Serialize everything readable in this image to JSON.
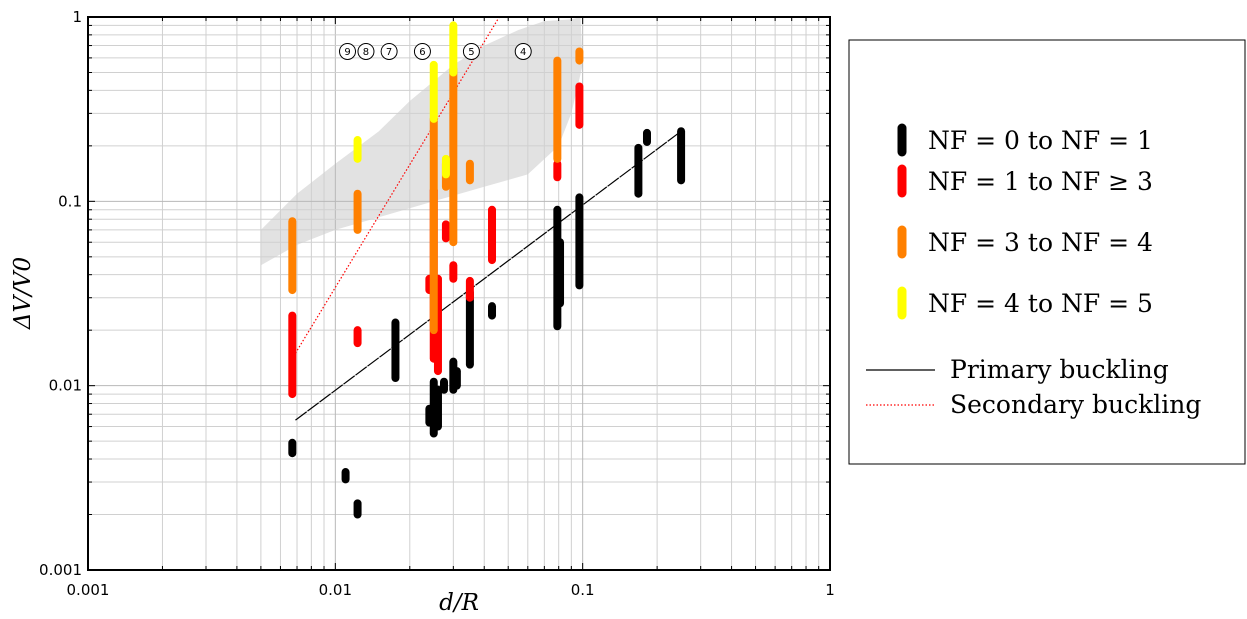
{
  "chart_data": {
    "type": "scatter",
    "xlabel": "d/R",
    "ylabel": "ΔV/V0",
    "xscale": "log",
    "yscale": "log",
    "xlim": [
      0.001,
      1
    ],
    "ylim": [
      0.001,
      1
    ],
    "grid": true,
    "legend_position": "right",
    "x_ticks": [
      {
        "value": 0.001,
        "label": "0.001"
      },
      {
        "value": 0.01,
        "label": "0.01"
      },
      {
        "value": 0.1,
        "label": "0.1"
      },
      {
        "value": 1,
        "label": "1"
      }
    ],
    "y_ticks": [
      {
        "value": 0.001,
        "label": "0.001"
      },
      {
        "value": 0.01,
        "label": "0.01"
      },
      {
        "value": 0.1,
        "label": "0.1"
      },
      {
        "value": 1,
        "label": "1"
      }
    ],
    "series": [
      {
        "name": "N_F = 0 to N_F = 1",
        "legend_label": "NF = 0 to NF = 1",
        "color": "#000000",
        "segments": [
          {
            "x": 0.0067,
            "y_min": 0.0043,
            "y_max": 0.0049
          },
          {
            "x": 0.011,
            "y_min": 0.0031,
            "y_max": 0.0034
          },
          {
            "x": 0.0123,
            "y_min": 0.002,
            "y_max": 0.0023
          },
          {
            "x": 0.0175,
            "y_min": 0.011,
            "y_max": 0.022
          },
          {
            "x": 0.024,
            "y_min": 0.0063,
            "y_max": 0.0075
          },
          {
            "x": 0.025,
            "y_min": 0.0055,
            "y_max": 0.0105
          },
          {
            "x": 0.026,
            "y_min": 0.006,
            "y_max": 0.0095
          },
          {
            "x": 0.0275,
            "y_min": 0.0095,
            "y_max": 0.0105
          },
          {
            "x": 0.03,
            "y_min": 0.0095,
            "y_max": 0.0135
          },
          {
            "x": 0.031,
            "y_min": 0.01,
            "y_max": 0.012
          },
          {
            "x": 0.035,
            "y_min": 0.013,
            "y_max": 0.032
          },
          {
            "x": 0.043,
            "y_min": 0.024,
            "y_max": 0.027
          },
          {
            "x": 0.079,
            "y_min": 0.021,
            "y_max": 0.09
          },
          {
            "x": 0.081,
            "y_min": 0.028,
            "y_max": 0.06
          },
          {
            "x": 0.097,
            "y_min": 0.035,
            "y_max": 0.105
          },
          {
            "x": 0.168,
            "y_min": 0.11,
            "y_max": 0.195
          },
          {
            "x": 0.182,
            "y_min": 0.21,
            "y_max": 0.235
          },
          {
            "x": 0.25,
            "y_min": 0.13,
            "y_max": 0.24
          }
        ]
      },
      {
        "name": "N_F = 1 to N_F ≥ 3",
        "legend_label": "NF = 1 to NF ≥ 3",
        "color": "#ff0000",
        "segments": [
          {
            "x": 0.0067,
            "y_min": 0.009,
            "y_max": 0.024
          },
          {
            "x": 0.0123,
            "y_min": 0.017,
            "y_max": 0.02
          },
          {
            "x": 0.024,
            "y_min": 0.033,
            "y_max": 0.038
          },
          {
            "x": 0.025,
            "y_min": 0.014,
            "y_max": 0.115
          },
          {
            "x": 0.026,
            "y_min": 0.012,
            "y_max": 0.038
          },
          {
            "x": 0.028,
            "y_min": 0.063,
            "y_max": 0.075
          },
          {
            "x": 0.03,
            "y_min": 0.038,
            "y_max": 0.045
          },
          {
            "x": 0.035,
            "y_min": 0.03,
            "y_max": 0.037
          },
          {
            "x": 0.043,
            "y_min": 0.048,
            "y_max": 0.09
          },
          {
            "x": 0.079,
            "y_min": 0.135,
            "y_max": 0.16
          },
          {
            "x": 0.097,
            "y_min": 0.26,
            "y_max": 0.42
          }
        ]
      },
      {
        "name": "N_F = 3 to N_F = 4",
        "legend_label": "NF = 3 to NF = 4",
        "color": "#ff8000",
        "segments": [
          {
            "x": 0.0067,
            "y_min": 0.033,
            "y_max": 0.078
          },
          {
            "x": 0.0123,
            "y_min": 0.07,
            "y_max": 0.11
          },
          {
            "x": 0.025,
            "y_min": 0.02,
            "y_max": 0.28
          },
          {
            "x": 0.028,
            "y_min": 0.12,
            "y_max": 0.16
          },
          {
            "x": 0.03,
            "y_min": 0.06,
            "y_max": 0.52
          },
          {
            "x": 0.035,
            "y_min": 0.13,
            "y_max": 0.16
          },
          {
            "x": 0.079,
            "y_min": 0.17,
            "y_max": 0.58
          },
          {
            "x": 0.097,
            "y_min": 0.58,
            "y_max": 0.65
          }
        ]
      },
      {
        "name": "N_F = 4 to N_F = 5",
        "legend_label": "NF = 4 to NF = 5",
        "color": "#ffff00",
        "segments": [
          {
            "x": 0.0123,
            "y_min": 0.17,
            "y_max": 0.215
          },
          {
            "x": 0.025,
            "y_min": 0.28,
            "y_max": 0.55
          },
          {
            "x": 0.028,
            "y_min": 0.14,
            "y_max": 0.17
          },
          {
            "x": 0.03,
            "y_min": 0.5,
            "y_max": 0.9
          }
        ]
      }
    ],
    "lines": [
      {
        "name": "Primary buckling",
        "color": "#000000",
        "style": "solid",
        "points": [
          {
            "x": 0.0069,
            "y": 0.0065
          },
          {
            "x": 0.25,
            "y": 0.24
          }
        ]
      },
      {
        "name": "Secondary buckling",
        "color": "#ff0000",
        "style": "dotted",
        "points": [
          {
            "x": 0.0069,
            "y": 0.015
          },
          {
            "x": 0.046,
            "y": 1.0
          }
        ]
      }
    ],
    "band": {
      "color": "#e2e2e2",
      "polygon": [
        {
          "x": 0.005,
          "y": 0.07
        },
        {
          "x": 0.007,
          "y": 0.11
        },
        {
          "x": 0.01,
          "y": 0.16
        },
        {
          "x": 0.015,
          "y": 0.24
        },
        {
          "x": 0.02,
          "y": 0.35
        },
        {
          "x": 0.03,
          "y": 0.55
        },
        {
          "x": 0.04,
          "y": 0.7
        },
        {
          "x": 0.055,
          "y": 0.85
        },
        {
          "x": 0.07,
          "y": 0.95
        },
        {
          "x": 0.09,
          "y": 0.97
        },
        {
          "x": 0.098,
          "y": 1.0
        },
        {
          "x": 0.1,
          "y": 0.55
        },
        {
          "x": 0.09,
          "y": 0.3
        },
        {
          "x": 0.08,
          "y": 0.2
        },
        {
          "x": 0.06,
          "y": 0.14
        },
        {
          "x": 0.04,
          "y": 0.12
        },
        {
          "x": 0.025,
          "y": 0.1
        },
        {
          "x": 0.015,
          "y": 0.082
        },
        {
          "x": 0.01,
          "y": 0.07
        },
        {
          "x": 0.007,
          "y": 0.058
        },
        {
          "x": 0.005,
          "y": 0.045
        }
      ]
    },
    "annotations": [
      {
        "text": "9",
        "x": 0.0112,
        "y": 0.65
      },
      {
        "text": "8",
        "x": 0.0133,
        "y": 0.65
      },
      {
        "text": "7",
        "x": 0.0165,
        "y": 0.65
      },
      {
        "text": "6",
        "x": 0.0225,
        "y": 0.65
      },
      {
        "text": "5",
        "x": 0.0355,
        "y": 0.65
      },
      {
        "text": "4",
        "x": 0.0575,
        "y": 0.65
      }
    ]
  }
}
